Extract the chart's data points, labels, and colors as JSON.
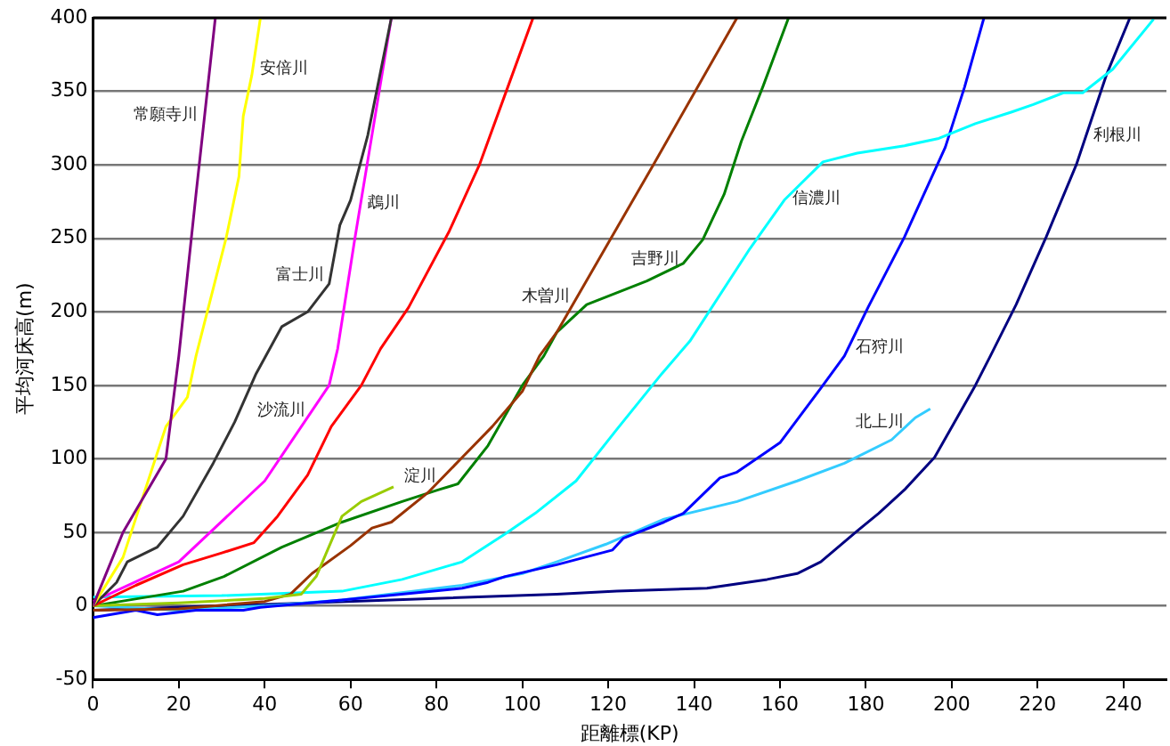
{
  "chart_data": {
    "type": "line",
    "xlabel": "距離標(KP)",
    "ylabel": "平均河床高(m)",
    "xlim": [
      0,
      250
    ],
    "ylim": [
      -50,
      400
    ],
    "xticks": [
      0,
      20,
      40,
      60,
      80,
      100,
      120,
      140,
      160,
      180,
      200,
      220,
      240
    ],
    "yticks": [
      -50,
      0,
      50,
      100,
      150,
      200,
      250,
      300,
      350,
      400
    ],
    "grid": "y",
    "legend": false,
    "marker": "none",
    "line_style": "solid",
    "series": [
      {
        "color": "#800080",
        "x": [
          0,
          7,
          17,
          20,
          24,
          28.5
        ],
        "values": [
          0,
          50,
          100,
          170,
          280,
          400
        ]
      },
      {
        "color": "#ffff00",
        "x": [
          0,
          7,
          17,
          22,
          24,
          31,
          34,
          35,
          37,
          39
        ],
        "values": [
          0,
          33,
          122,
          142,
          170,
          250,
          292,
          333,
          361,
          400
        ]
      },
      {
        "color": "#333333",
        "x": [
          0,
          5.5,
          8,
          15,
          21,
          28,
          33,
          38,
          44,
          50,
          55,
          57.5,
          60,
          64,
          69.5
        ],
        "values": [
          0,
          16,
          30,
          40,
          61,
          97,
          125,
          158,
          190,
          200,
          219,
          259,
          276,
          320,
          400
        ]
      },
      {
        "color": "#ff00ff",
        "x": [
          0,
          20,
          40,
          55,
          57,
          61,
          69.5
        ],
        "values": [
          3,
          30,
          85,
          150,
          175,
          250,
          400
        ]
      },
      {
        "color": "#ff0000",
        "x": [
          0,
          10,
          21,
          30,
          37.5,
          43,
          50,
          55.5,
          62.5,
          67,
          73.5,
          83,
          90,
          96,
          102.5
        ],
        "values": [
          0,
          14,
          28,
          36,
          43,
          61,
          89,
          122,
          150,
          175,
          203,
          255,
          300,
          348,
          400
        ]
      },
      {
        "color": "#99cc00",
        "x": [
          0,
          20,
          40,
          48.5,
          52,
          58,
          62.5,
          70
        ],
        "values": [
          0,
          2,
          5,
          8,
          20,
          61,
          71,
          81
        ]
      },
      {
        "color": "#993300",
        "x": [
          0,
          20,
          40,
          46,
          51,
          60,
          65,
          69.5,
          78,
          86,
          93,
          100,
          104,
          108,
          130.5,
          150
        ],
        "values": [
          -3,
          -2,
          3,
          8,
          22,
          41,
          53,
          57,
          77,
          101,
          122,
          146,
          170,
          186,
          300,
          400
        ]
      },
      {
        "color": "#008000",
        "x": [
          0,
          21,
          30.5,
          44,
          58,
          72,
          80.5,
          85,
          92,
          100,
          105,
          108,
          115,
          129,
          137.5,
          142,
          147,
          151,
          156,
          162
        ],
        "values": [
          0,
          10,
          20,
          40,
          57,
          71,
          79,
          83,
          109,
          150,
          170,
          186,
          205,
          221,
          233,
          249,
          280,
          316,
          353,
          400
        ]
      },
      {
        "color": "#00ffff",
        "x": [
          0,
          30,
          58,
          72,
          86,
          96,
          103,
          112.5,
          122,
          132.5,
          139,
          153,
          161,
          170,
          178,
          189,
          197,
          205.5,
          214,
          219,
          226,
          230.5,
          237.5,
          247
        ],
        "values": [
          6,
          7,
          10,
          18,
          30,
          49,
          63,
          85,
          120,
          158,
          180,
          243,
          276,
          302,
          308,
          313,
          318,
          328,
          336,
          341,
          349,
          349,
          365,
          399
        ]
      },
      {
        "color": "#0000ff",
        "x": [
          0,
          10,
          15,
          24,
          35,
          39,
          58,
          86,
          92,
          96,
          108,
          121,
          123.5,
          133,
          137.5,
          146,
          150,
          160,
          169.5,
          175,
          180.5,
          189,
          198.5,
          203,
          207.5
        ],
        "values": [
          -8,
          -3,
          -6,
          -3,
          -3,
          -1,
          4,
          12,
          16,
          20,
          28,
          38,
          46,
          57,
          63,
          87,
          91,
          111,
          148,
          170,
          203,
          251,
          312,
          353,
          400
        ]
      },
      {
        "color": "#33ccff",
        "x": [
          0,
          20,
          40,
          58,
          86,
          100,
          108,
          119.5,
          133,
          150,
          164,
          175,
          186,
          191.5,
          195
        ],
        "values": [
          0,
          -3,
          0,
          4,
          14,
          22,
          30,
          42,
          59,
          71,
          85,
          97,
          113,
          128,
          134
        ]
      },
      {
        "color": "#000080",
        "x": [
          0,
          30,
          108,
          122,
          143,
          157,
          164,
          169.5,
          178,
          183,
          189,
          196,
          205.5,
          209,
          215,
          222,
          229,
          236,
          241.5
        ],
        "values": [
          -3,
          0,
          8,
          10,
          12,
          18,
          22,
          30,
          51,
          63,
          79,
          101,
          150,
          170,
          205,
          251,
          300,
          361,
          400
        ]
      }
    ],
    "annotations": [
      {
        "text": "常願寺川",
        "x": 26,
        "y": 334
      },
      {
        "text": "安倍川",
        "x": 37.3,
        "y": 365
      },
      {
        "text": "富士川",
        "x": 55.4,
        "y": 225
      },
      {
        "text": "沙流川",
        "x": 51.1,
        "y": 133
      },
      {
        "text": "淀川",
        "x": 81.7,
        "y": 88
      },
      {
        "text": "鵡川",
        "x": 62.4,
        "y": 274
      },
      {
        "text": "木曽川",
        "x": 112.7,
        "y": 210
      },
      {
        "text": "吉野川",
        "x": 138.3,
        "y": 236
      },
      {
        "text": "信濃川",
        "x": 161.3,
        "y": 277
      },
      {
        "text": "利根川",
        "x": 231.3,
        "y": 320
      },
      {
        "text": "石狩川",
        "x": 176,
        "y": 176
      },
      {
        "text": "北上川",
        "x": 190.4,
        "y": 125
      }
    ]
  }
}
